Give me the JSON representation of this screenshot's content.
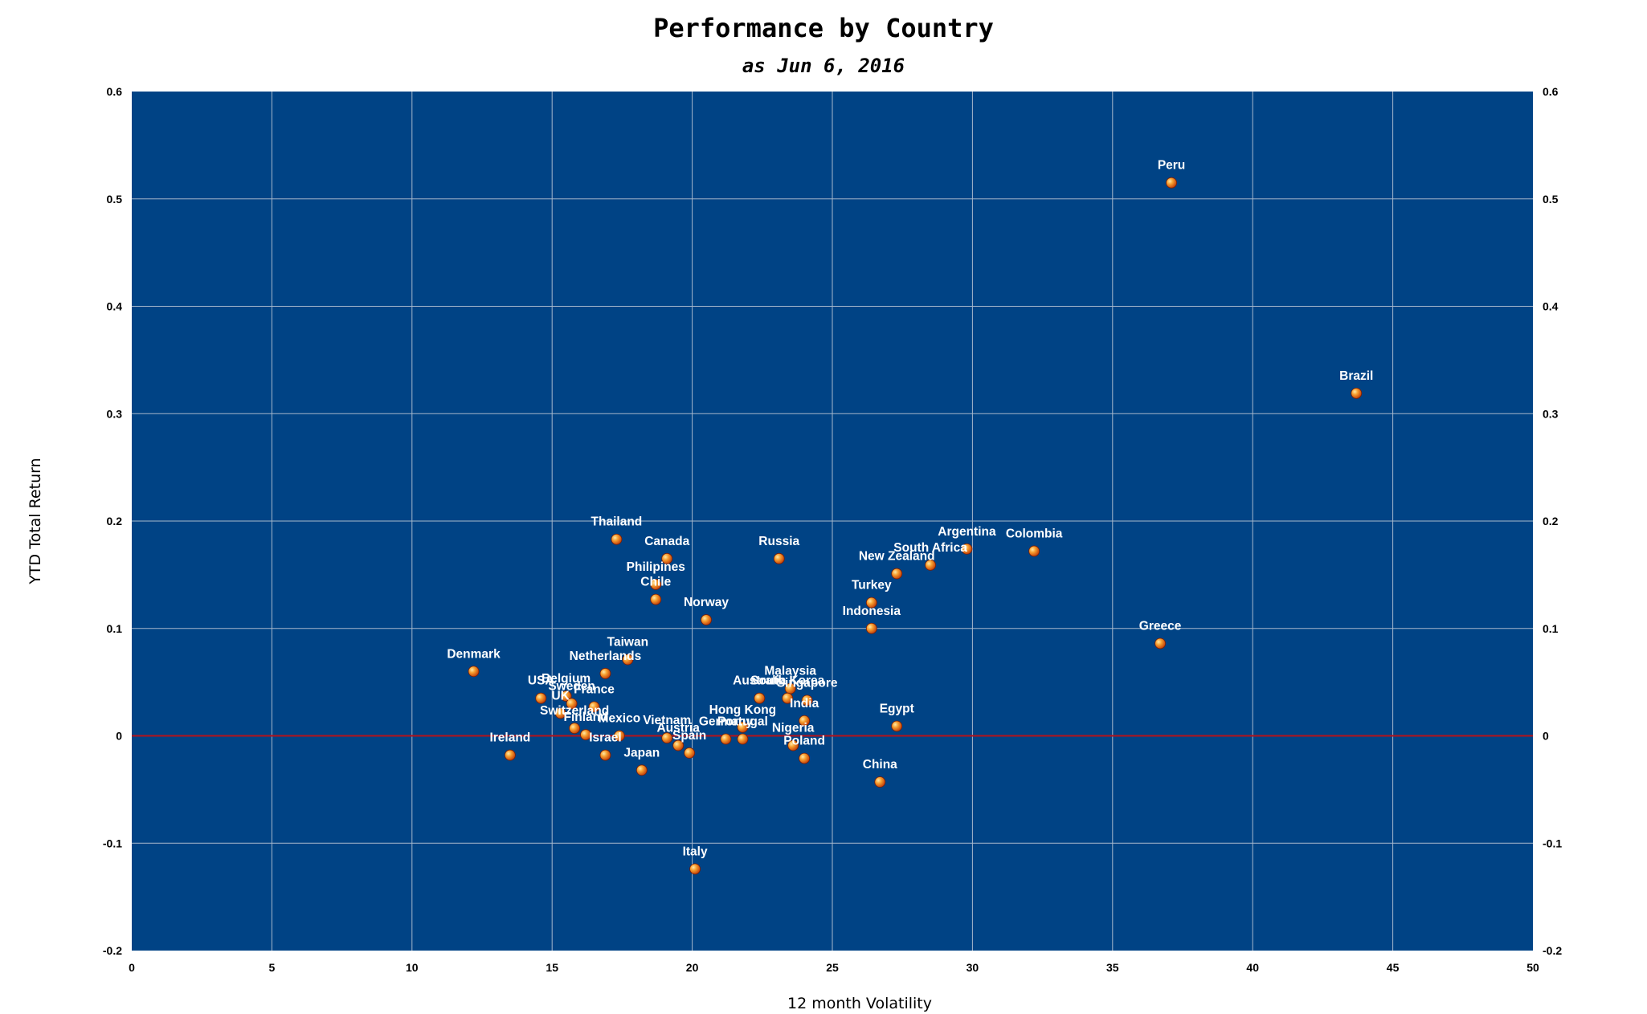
{
  "chart_data": {
    "type": "scatter",
    "title": "Performance by Country",
    "subtitle": "as Jun 6, 2016",
    "xlabel": "12 month Volatility",
    "ylabel": "YTD Total Return",
    "xlim": [
      0,
      50
    ],
    "ylim": [
      -0.2,
      0.6
    ],
    "xticks": [
      "0",
      "5",
      "10",
      "15",
      "20",
      "25",
      "30",
      "35",
      "40",
      "45",
      "50"
    ],
    "yticks": [
      "-0.2",
      "-0.1",
      "0",
      "0.1",
      "0.2",
      "0.3",
      "0.4",
      "0.5",
      "0.6"
    ],
    "grid": true,
    "legend": "none",
    "colors": {
      "plot_background": "#004385",
      "grid": "#a7b8cc",
      "zero_line": "#b4121b",
      "marker": "#f07a1e"
    },
    "points": [
      {
        "label": "Peru",
        "x": 37.1,
        "y": 0.515
      },
      {
        "label": "Brazil",
        "x": 43.7,
        "y": 0.319
      },
      {
        "label": "Thailand",
        "x": 17.3,
        "y": 0.183
      },
      {
        "label": "Canada",
        "x": 19.1,
        "y": 0.165
      },
      {
        "label": "Russia",
        "x": 23.1,
        "y": 0.165
      },
      {
        "label": "Argentina",
        "x": 29.8,
        "y": 0.174
      },
      {
        "label": "Colombia",
        "x": 32.2,
        "y": 0.172
      },
      {
        "label": "South Africa",
        "x": 28.5,
        "y": 0.159
      },
      {
        "label": "New Zealand",
        "x": 27.3,
        "y": 0.151
      },
      {
        "label": "Philipines",
        "x": 18.7,
        "y": 0.141
      },
      {
        "label": "Chile",
        "x": 18.7,
        "y": 0.127
      },
      {
        "label": "Turkey",
        "x": 26.4,
        "y": 0.124
      },
      {
        "label": "Norway",
        "x": 20.5,
        "y": 0.108
      },
      {
        "label": "Indonesia",
        "x": 26.4,
        "y": 0.1
      },
      {
        "label": "Greece",
        "x": 36.7,
        "y": 0.086
      },
      {
        "label": "Taiwan",
        "x": 17.7,
        "y": 0.071
      },
      {
        "label": "Denmark",
        "x": 12.2,
        "y": 0.06
      },
      {
        "label": "Netherlands",
        "x": 16.9,
        "y": 0.058
      },
      {
        "label": "Malaysia",
        "x": 23.5,
        "y": 0.044
      },
      {
        "label": "Belgium",
        "x": 15.5,
        "y": 0.037
      },
      {
        "label": "South Korea",
        "x": 23.4,
        "y": 0.035
      },
      {
        "label": "USA",
        "x": 14.6,
        "y": 0.035
      },
      {
        "label": "Sweden",
        "x": 15.7,
        "y": 0.03
      },
      {
        "label": "Australia",
        "x": 22.4,
        "y": 0.035
      },
      {
        "label": "Singapore",
        "x": 24.1,
        "y": 0.033
      },
      {
        "label": "France",
        "x": 16.5,
        "y": 0.027
      },
      {
        "label": "UK",
        "x": 15.3,
        "y": 0.021
      },
      {
        "label": "Hong Kong",
        "x": 21.8,
        "y": 0.008
      },
      {
        "label": "India",
        "x": 24.0,
        "y": 0.014
      },
      {
        "label": "Egypt",
        "x": 27.3,
        "y": 0.009
      },
      {
        "label": "Finland",
        "x": 16.2,
        "y": 0.001
      },
      {
        "label": "Mexico",
        "x": 17.4,
        "y": 0.0
      },
      {
        "label": "Switzerland",
        "x": 15.8,
        "y": 0.007
      },
      {
        "label": "Vietnam",
        "x": 19.1,
        "y": -0.002
      },
      {
        "label": "Austria",
        "x": 19.5,
        "y": -0.009
      },
      {
        "label": "Germany",
        "x": 21.2,
        "y": -0.003
      },
      {
        "label": "Portugal",
        "x": 21.8,
        "y": -0.003
      },
      {
        "label": "Nigeria",
        "x": 23.6,
        "y": -0.009
      },
      {
        "label": "Poland",
        "x": 24.0,
        "y": -0.021
      },
      {
        "label": "Ireland",
        "x": 13.5,
        "y": -0.018
      },
      {
        "label": "Israel",
        "x": 16.9,
        "y": -0.018
      },
      {
        "label": "Japan",
        "x": 18.2,
        "y": -0.032
      },
      {
        "label": "Spain",
        "x": 19.9,
        "y": -0.016
      },
      {
        "label": "China",
        "x": 26.7,
        "y": -0.043
      },
      {
        "label": "Italy",
        "x": 20.1,
        "y": -0.124
      }
    ]
  }
}
